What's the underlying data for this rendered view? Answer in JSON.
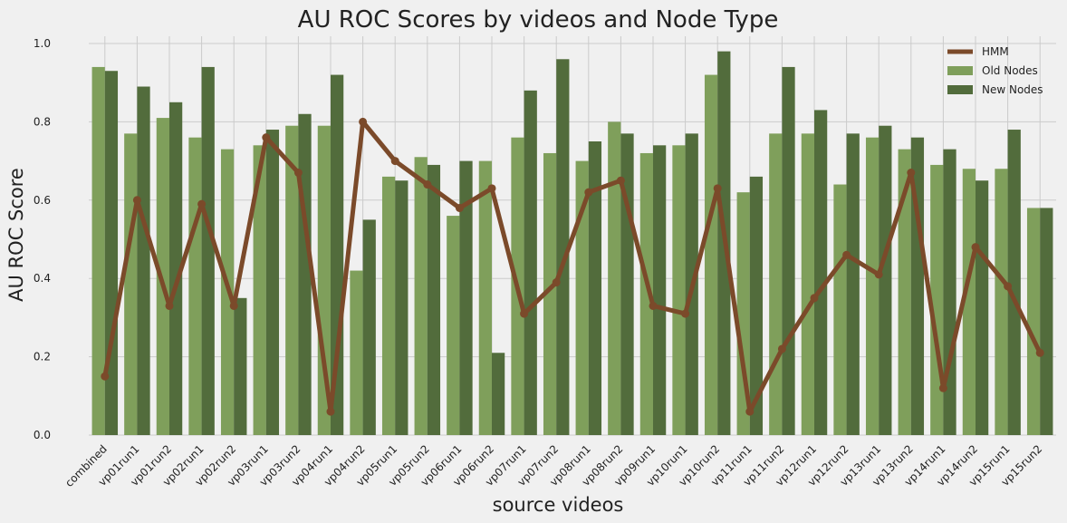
{
  "chart_data": {
    "type": "bar",
    "title": "AU ROC Scores by videos and Node Type",
    "xlabel": "source videos",
    "ylabel": "AU ROC Score",
    "ylim": [
      0,
      1.0
    ],
    "yticks": [
      "0.0",
      "0.2",
      "0.4",
      "0.6",
      "0.8",
      "1.0"
    ],
    "grid": true,
    "legend_position": "top-right",
    "colors": {
      "hmm": "#7b4a2a",
      "old": "#7f9f5b",
      "new": "#526c3c",
      "grid": "#cbcbcb",
      "background": "#f0f0f0"
    },
    "categories": [
      "combined",
      "vp01run1",
      "vp01run2",
      "vp02run1",
      "vp02run2",
      "vp03run1",
      "vp03run2",
      "vp04run1",
      "vp04run2",
      "vp05run1",
      "vp05run2",
      "vp06run1",
      "vp06run2",
      "vp07run1",
      "vp07run2",
      "vp08run1",
      "vp08run2",
      "vp09run1",
      "vp10run1",
      "vp10run2",
      "vp11run1",
      "vp11run2",
      "vp12run1",
      "vp12run2",
      "vp13run1",
      "vp13run2",
      "vp14run1",
      "vp14run2",
      "vp15run1",
      "vp15run2"
    ],
    "series": [
      {
        "name": "HMM",
        "kind": "line",
        "values": [
          0.15,
          0.6,
          0.33,
          0.59,
          0.33,
          0.76,
          0.67,
          0.06,
          0.8,
          0.7,
          0.64,
          0.58,
          0.63,
          0.31,
          0.39,
          0.62,
          0.65,
          0.33,
          0.31,
          0.63,
          0.06,
          0.22,
          0.35,
          0.46,
          0.41,
          0.67,
          0.12,
          0.48,
          0.38,
          0.21
        ]
      },
      {
        "name": "Old Nodes",
        "kind": "bar",
        "values": [
          0.94,
          0.77,
          0.81,
          0.76,
          0.73,
          0.74,
          0.79,
          0.79,
          0.42,
          0.66,
          0.71,
          0.56,
          0.7,
          0.76,
          0.72,
          0.7,
          0.8,
          0.72,
          0.74,
          0.92,
          0.62,
          0.77,
          0.77,
          0.64,
          0.76,
          0.73,
          0.69,
          0.68,
          0.68,
          0.58
        ]
      },
      {
        "name": "New Nodes",
        "kind": "bar",
        "values": [
          0.93,
          0.89,
          0.85,
          0.94,
          0.35,
          0.78,
          0.82,
          0.92,
          0.55,
          0.65,
          0.69,
          0.7,
          0.21,
          0.88,
          0.96,
          0.75,
          0.77,
          0.74,
          0.77,
          0.98,
          0.66,
          0.94,
          0.83,
          0.77,
          0.79,
          0.76,
          0.73,
          0.65,
          0.78,
          0.58
        ]
      }
    ]
  }
}
